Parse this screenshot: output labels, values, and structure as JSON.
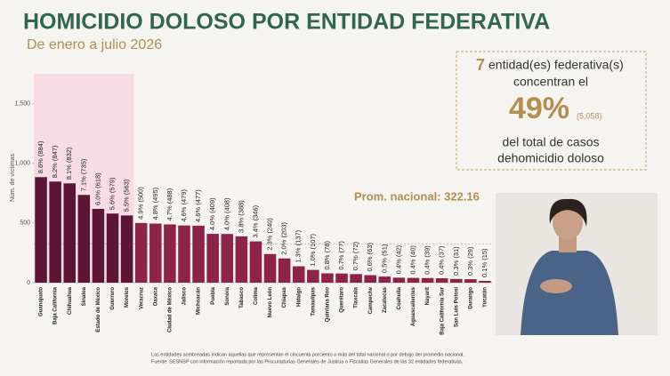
{
  "chart_data": {
    "type": "bar",
    "title": "HOMICIDIO DOLOSO POR ENTIDAD FEDERATIVA",
    "subtitle": "De enero a julio 2026",
    "y_label": "Núm. de víctimas",
    "categories": [
      "Guanajuato",
      "Baja California",
      "Chihuahua",
      "Sinaloa",
      "Estado de México",
      "Guerrero",
      "Morelos",
      "Veracruz",
      "Oaxaca",
      "Ciudad de México",
      "Jalisco",
      "Michoacán",
      "Puebla",
      "Sonora",
      "Tabasco",
      "Colima",
      "Nuevo León",
      "Chiapas",
      "Hidalgo",
      "Tamaulipas",
      "Quintana Roo",
      "Querétaro",
      "Tlaxcala",
      "Campeche",
      "Zacatecas",
      "Coahuila",
      "Aguascalientes",
      "Nayarit",
      "Baja California Sur",
      "San Luis Potosí",
      "Durango",
      "Yucatán"
    ],
    "values": [
      884,
      847,
      832,
      735,
      618,
      579,
      563,
      500,
      495,
      488,
      479,
      477,
      409,
      408,
      388,
      346,
      240,
      203,
      137,
      107,
      78,
      77,
      72,
      63,
      51,
      42,
      40,
      39,
      37,
      31,
      29,
      15
    ],
    "value_labels": [
      "8.6% (884)",
      "8.2% (847)",
      "8.1% (832)",
      "7.1% (735)",
      "6.0% (618)",
      "5.6% (579)",
      "5.5% (563)",
      "4.9% (500)",
      "4.8% (495)",
      "4.7% (488)",
      "4.6% (479)",
      "4.6% (477)",
      "4.0% (409)",
      "4.0% (408)",
      "3.8% (388)",
      "3.4% (346)",
      "2.3% (240)",
      "2.0% (203)",
      "1.3% (137)",
      "1.0% (107)",
      "0.8% (78)",
      "0.7% (77)",
      "0.7% (72)",
      "0.6% (63)",
      "0.5% (51)",
      "0.4% (42)",
      "0.4% (40)",
      "0.4% (39)",
      "0.4% (37)",
      "0.3% (31)",
      "0.3% (29)",
      "0.1% (15)"
    ],
    "colors": [
      "#5a1634",
      "#5a1634",
      "#5a1634",
      "#5a1634",
      "#5a1634",
      "#5a1634",
      "#5a1634",
      "#8e2349",
      "#8e2349",
      "#8e2349",
      "#8e2349",
      "#8e2349",
      "#8e2349",
      "#8e2349",
      "#8e2349",
      "#8e2349",
      "#8e2349",
      "#8e2349",
      "#8e2349",
      "#8e2349",
      "#8e2349",
      "#8e2349",
      "#8e2349",
      "#8e2349",
      "#8e2349",
      "#8e2349",
      "#8e2349",
      "#8e2349",
      "#8e2349",
      "#8e2349",
      "#8e2349",
      "#8e2349"
    ],
    "highlight_color": "#5a1634",
    "shade_color": "#f8dce5",
    "ylim": [
      0,
      1750
    ],
    "yticks": [
      0,
      500,
      {
        "value": 1000,
        "label": "1,000"
      },
      {
        "value": 1500,
        "label": "1,500"
      }
    ],
    "average": 322.16,
    "average_label": "Prom. nacional: 322.16",
    "summary": {
      "count": "7",
      "line1": "entidad(es) federativa(s)",
      "line2": "concentran el",
      "percent": "49%",
      "total": "(5,058)",
      "line3": "del total de casos",
      "line4": "dehomicidio doloso"
    },
    "footnotes": [
      "Las entidades sombreadas indican aquellas que representan el cincuenta porciento o más del total nacional o por debajo del promedio nacional.",
      "Fuente: SESNSP con información reportada por las Procuradurías Generales de Justicia o Fiscalías Generales de las 32 entidades federativas."
    ]
  }
}
